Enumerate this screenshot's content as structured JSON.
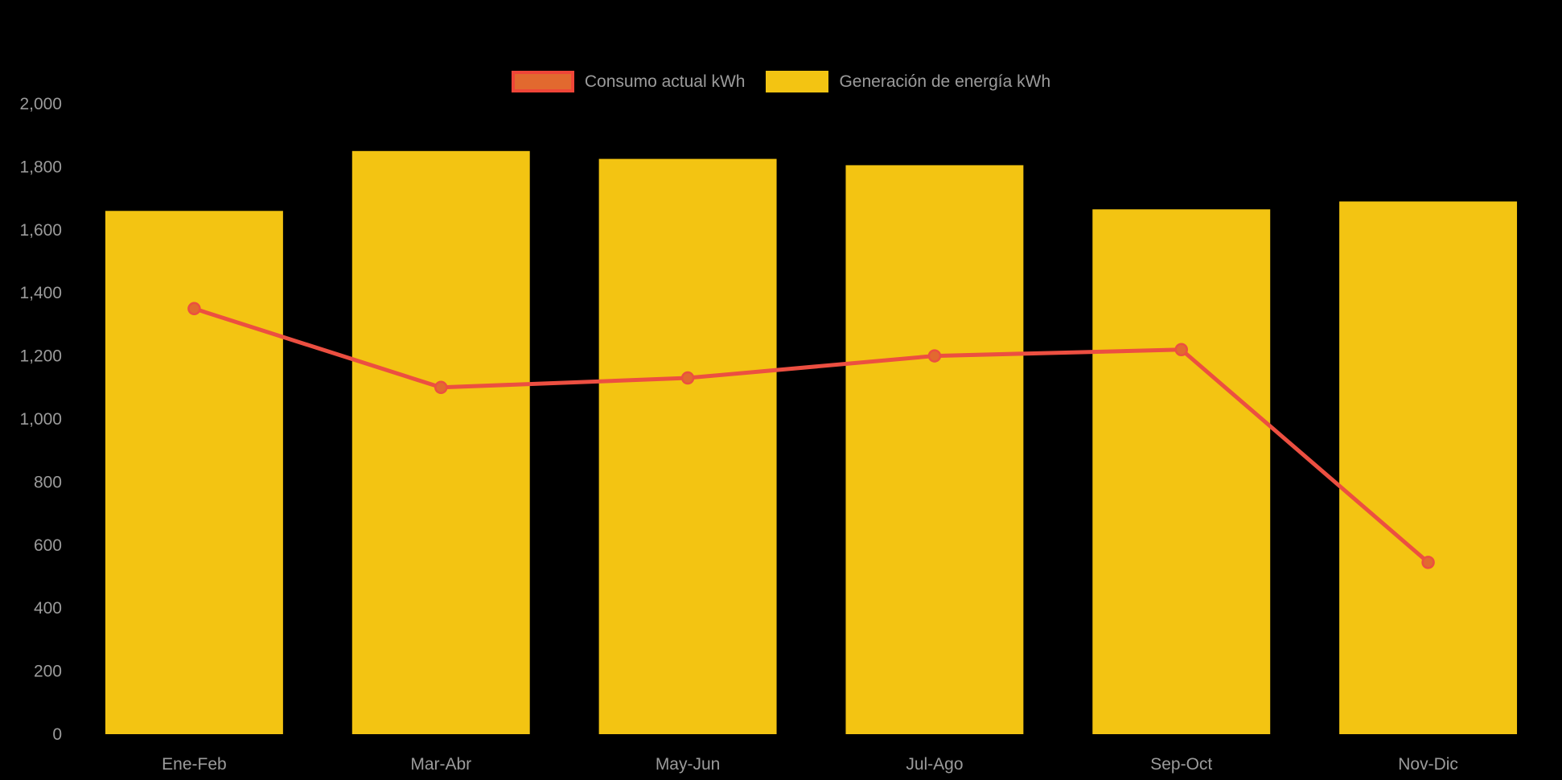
{
  "page": {
    "background": "#000000",
    "text_color": "#9b9b9b"
  },
  "legend": {
    "position": "top",
    "items": [
      {
        "label": "Consumo actual kWh",
        "swatch_fill": "#e2692f",
        "swatch_border": "#ef4538",
        "series_type": "line"
      },
      {
        "label": "Generación de energía kWh",
        "swatch_fill": "#f3c412",
        "swatch_border": "#f3c412",
        "series_type": "bar"
      }
    ]
  },
  "chart_data": {
    "type": "bar",
    "title": "",
    "xlabel": "",
    "ylabel": "",
    "categories": [
      "Ene-Feb",
      "Mar-Abr",
      "May-Jun",
      "Jul-Ago",
      "Sep-Oct",
      "Nov-Dic"
    ],
    "series": [
      {
        "name": "Consumo actual kWh",
        "type": "line",
        "color": "#ec4f41",
        "marker_fill": "#e2692f",
        "values": [
          1350,
          1100,
          1130,
          1200,
          1220,
          545
        ]
      },
      {
        "name": "Generación de energía kWh",
        "type": "bar",
        "color": "#f3c412",
        "values": [
          1660,
          1850,
          1825,
          1805,
          1665,
          1690
        ]
      }
    ],
    "ylim": [
      0,
      2000
    ],
    "y_ticks": [
      0,
      200,
      400,
      600,
      800,
      1000,
      1200,
      1400,
      1600,
      1800,
      2000
    ],
    "y_tick_labels": [
      "0",
      "200",
      "400",
      "600",
      "800",
      "1,000",
      "1,200",
      "1,400",
      "1,600",
      "1,800",
      "2,000"
    ],
    "grid": false,
    "legend_position": "top",
    "background": "#000000"
  }
}
